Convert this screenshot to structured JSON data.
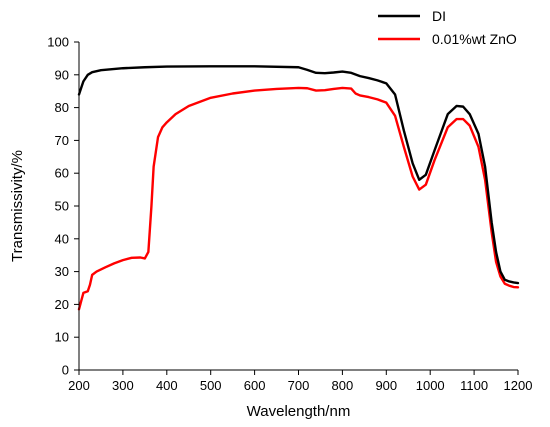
{
  "chart_data": {
    "type": "line",
    "title": "",
    "xlabel": "Wavelength/nm",
    "ylabel": "Transmissivity/%",
    "xlim": [
      200,
      1200
    ],
    "ylim": [
      0,
      100
    ],
    "xticks": [
      200,
      300,
      400,
      500,
      600,
      700,
      800,
      900,
      1000,
      1100,
      1200
    ],
    "yticks": [
      0,
      10,
      20,
      30,
      40,
      50,
      60,
      70,
      80,
      90,
      100
    ],
    "xtick_labels": [
      "200",
      "300",
      "400",
      "500",
      "600",
      "700",
      "800",
      "900",
      "1000",
      "1100",
      "1200"
    ],
    "ytick_labels": [
      "0",
      "10",
      "20",
      "30",
      "40",
      "50",
      "60",
      "70",
      "80",
      "90",
      "100"
    ],
    "grid": false,
    "legend": "top-right",
    "series": [
      {
        "name": "DI",
        "color": "#000000",
        "x": [
          200,
          205,
          210,
          220,
          230,
          250,
          300,
          350,
          400,
          500,
          600,
          700,
          720,
          740,
          760,
          780,
          800,
          820,
          840,
          860,
          880,
          900,
          920,
          940,
          960,
          975,
          990,
          1010,
          1040,
          1060,
          1075,
          1090,
          1110,
          1125,
          1140,
          1150,
          1160,
          1170,
          1180,
          1190,
          1200
        ],
        "y": [
          84,
          86,
          88,
          90,
          90.8,
          91.4,
          92,
          92.3,
          92.5,
          92.6,
          92.6,
          92.3,
          91.5,
          90.6,
          90.5,
          90.7,
          91,
          90.6,
          89.6,
          89,
          88.3,
          87.4,
          84,
          73,
          63,
          58,
          59.5,
          67,
          78,
          80.5,
          80.3,
          78,
          72,
          62,
          45,
          36,
          30,
          27.5,
          27,
          26.7,
          26.5
        ]
      },
      {
        "name": "0.01%wt ZnO",
        "color": "#ff0000",
        "x": [
          200,
          205,
          210,
          220,
          225,
          230,
          240,
          260,
          280,
          300,
          320,
          340,
          350,
          358,
          365,
          370,
          380,
          390,
          400,
          420,
          450,
          500,
          550,
          600,
          650,
          700,
          720,
          740,
          760,
          780,
          800,
          820,
          830,
          840,
          860,
          880,
          900,
          920,
          940,
          960,
          975,
          990,
          1010,
          1040,
          1060,
          1075,
          1090,
          1110,
          1125,
          1140,
          1150,
          1160,
          1170,
          1180,
          1190,
          1200
        ],
        "y": [
          18.5,
          21,
          23.5,
          24,
          26,
          29,
          30,
          31.3,
          32.5,
          33.5,
          34.2,
          34.3,
          34,
          36,
          50,
          62,
          71,
          74,
          75.5,
          78,
          80.5,
          83,
          84.3,
          85.2,
          85.7,
          86,
          85.9,
          85.2,
          85.3,
          85.7,
          86,
          85.8,
          84.3,
          83.7,
          83.2,
          82.5,
          81.5,
          77.5,
          68,
          59,
          55,
          56.5,
          64,
          74,
          76.5,
          76.5,
          74.5,
          68,
          58,
          42,
          33,
          28.5,
          26.3,
          25.7,
          25.3,
          25.2
        ]
      }
    ]
  }
}
